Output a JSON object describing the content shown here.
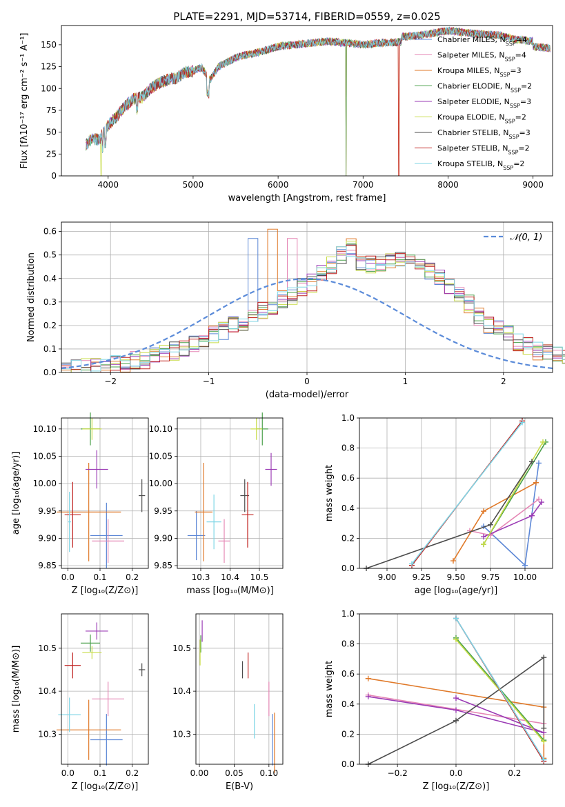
{
  "figure": {
    "title": "PLATE=2291, MJD=53714, FIBERID=0559, z=0.025"
  },
  "colors": {
    "Chabrier MILES": "#5c87d6",
    "Salpeter MILES": "#e587b5",
    "Kroupa MILES": "#e07a2a",
    "Chabrier ELODIE": "#4aa04a",
    "Salpeter ELODIE": "#9b3bb5",
    "Kroupa ELODIE": "#c8dc48",
    "Chabrier STELIB": "#4d4d4d",
    "Salpeter STELIB": "#c0211f",
    "Kroupa STELIB": "#7fd6e6",
    "normal_curve": "#5b8bd9"
  },
  "chart_data": [
    {
      "id": "spectrum",
      "type": "line",
      "title": "PLATE=2291, MJD=53714, FIBERID=0559, z=0.025",
      "xlabel": "wavelength [Angstrom, rest frame]",
      "ylabel": "Flux [fλ10⁻¹⁷ erg cm⁻² s⁻¹ A⁻¹]",
      "xlim": [
        3450,
        9230
      ],
      "ylim": [
        0,
        172
      ],
      "xticks": [
        4000,
        5000,
        6000,
        7000,
        8000,
        9000
      ],
      "yticks": [
        0,
        25,
        50,
        75,
        100,
        125,
        150
      ],
      "grid": false,
      "legend_position": "top-right",
      "continuum": {
        "x": [
          3740,
          3800,
          3900,
          4000,
          4100,
          4200,
          4300,
          4400,
          4500,
          4600,
          4700,
          4800,
          4900,
          5000,
          5100,
          5200,
          5300,
          5400,
          5500,
          5600,
          5700,
          5800,
          5900,
          6000,
          6200,
          6400,
          6600,
          6800,
          7000,
          7200,
          7400,
          7600,
          7800,
          8000,
          8200,
          8400,
          8600,
          8800,
          9000,
          9200
        ],
        "y": [
          35,
          42,
          42,
          58,
          68,
          80,
          88,
          90,
          100,
          106,
          110,
          112,
          118,
          120,
          124,
          110,
          125,
          130,
          135,
          138,
          140,
          142,
          145,
          148,
          150,
          152,
          154,
          152,
          150,
          152,
          153,
          154,
          157,
          160,
          158,
          156,
          155,
          150,
          148,
          146
        ]
      },
      "dropouts": [
        {
          "series": "Kroupa ELODIE",
          "x": 3918
        },
        {
          "series": "Kroupa MILES",
          "x": 6800
        },
        {
          "series": "Chabrier ELODIE",
          "x": 6800
        },
        {
          "series": "Kroupa MILES",
          "x": 7420
        },
        {
          "series": "Salpeter STELIB",
          "x": 7420
        }
      ],
      "series": [
        {
          "name": "Chabrier MILES",
          "nssp": "4"
        },
        {
          "name": "Salpeter MILES",
          "nssp": "4"
        },
        {
          "name": "Kroupa MILES",
          "nssp": "3"
        },
        {
          "name": "Chabrier ELODIE",
          "nssp": "2"
        },
        {
          "name": "Salpeter ELODIE",
          "nssp": "3"
        },
        {
          "name": "Kroupa ELODIE",
          "nssp": "2"
        },
        {
          "name": "Chabrier STELIB",
          "nssp": "3"
        },
        {
          "name": "Salpeter STELIB",
          "nssp": "2"
        },
        {
          "name": "Kroupa STELIB",
          "nssp": "2"
        }
      ]
    },
    {
      "id": "residuals",
      "type": "histogram",
      "xlabel": "(data-model)/error",
      "ylabel": "Normed distribution",
      "xlim": [
        -2.5,
        2.5
      ],
      "ylim": [
        0,
        0.64
      ],
      "xticks": [
        -2,
        -1,
        0,
        1,
        2
      ],
      "yticks": [
        0.0,
        0.1,
        0.2,
        0.3,
        0.4,
        0.5,
        0.6
      ],
      "grid": true,
      "legend_position": "top-right",
      "legend_label": "𝒩(0, 1)",
      "bin_width": 0.1,
      "bin_start": -2.5,
      "base_values": [
        0.01,
        0.015,
        0.02,
        0.025,
        0.03,
        0.035,
        0.04,
        0.05,
        0.055,
        0.065,
        0.08,
        0.09,
        0.1,
        0.12,
        0.14,
        0.16,
        0.18,
        0.2,
        0.21,
        0.24,
        0.26,
        0.28,
        0.31,
        0.33,
        0.36,
        0.38,
        0.42,
        0.46,
        0.5,
        0.53,
        0.47,
        0.46,
        0.47,
        0.47,
        0.48,
        0.47,
        0.47,
        0.43,
        0.41,
        0.36,
        0.33,
        0.29,
        0.24,
        0.2,
        0.19,
        0.17,
        0.13,
        0.11,
        0.09,
        0.08,
        0.07,
        0.06,
        0.05,
        0.05,
        0.04,
        0.04,
        0.03,
        0.03,
        0.03,
        0.03
      ],
      "peaks": [
        {
          "series": "Kroupa MILES",
          "x": -0.35,
          "y": 0.61
        },
        {
          "series": "Chabrier MILES",
          "x": -0.65,
          "y": 0.57
        },
        {
          "series": "Salpeter MILES",
          "x": -0.25,
          "y": 0.57
        }
      ]
    },
    {
      "id": "age-vs-Z",
      "type": "scatter",
      "xlabel": "Z [log₁₀(Z/Z⊙)]",
      "ylabel": "age  [log₁₀(age/yr)]",
      "xlim": [
        -0.02,
        0.25
      ],
      "ylim": [
        9.845,
        10.12
      ],
      "xticks": [
        0.0,
        0.1,
        0.2
      ],
      "yticks": [
        9.85,
        9.9,
        9.95,
        10.0,
        10.05,
        10.1
      ],
      "points": [
        {
          "series": "Chabrier MILES",
          "x": 0.12,
          "y": 9.905,
          "xerr": 0.05,
          "yerr": 0.06
        },
        {
          "series": "Salpeter MILES",
          "x": 0.125,
          "y": 9.895,
          "xerr": 0.05,
          "yerr": 0.04
        },
        {
          "series": "Kroupa MILES",
          "x": 0.065,
          "y": 9.948,
          "xerr": 0.1,
          "yerr": 0.09
        },
        {
          "series": "Chabrier ELODIE",
          "x": 0.07,
          "y": 10.1,
          "xerr": 0.03,
          "yerr": 0.03
        },
        {
          "series": "Salpeter ELODIE",
          "x": 0.09,
          "y": 10.026,
          "xerr": 0.035,
          "yerr": 0.035
        },
        {
          "series": "Kroupa ELODIE",
          "x": 0.075,
          "y": 10.1,
          "xerr": 0.03,
          "yerr": 0.02
        },
        {
          "series": "Chabrier STELIB",
          "x": 0.23,
          "y": 9.978,
          "xerr": 0.01,
          "yerr": 0.03
        },
        {
          "series": "Salpeter STELIB",
          "x": 0.015,
          "y": 9.943,
          "xerr": 0.025,
          "yerr": 0.06
        },
        {
          "series": "Kroupa STELIB",
          "x": 0.005,
          "y": 9.93,
          "xerr": 0.005,
          "yerr": 0.055
        }
      ]
    },
    {
      "id": "age-vs-mass",
      "type": "scatter",
      "xlabel": "mass [log₁₀(M/M⊙)]",
      "ylabel": "",
      "xlim": [
        10.22,
        10.58
      ],
      "ylim": [
        9.845,
        10.12
      ],
      "xticks": [
        10.3,
        10.4,
        10.5
      ],
      "yticks": [
        9.85,
        9.9,
        9.95,
        10.0,
        10.05,
        10.1
      ],
      "points": [
        {
          "series": "Chabrier MILES",
          "x": 10.285,
          "y": 9.905,
          "xerr": 0.03,
          "yerr": 0.045
        },
        {
          "series": "Salpeter MILES",
          "x": 10.38,
          "y": 9.895,
          "xerr": 0.02,
          "yerr": 0.04
        },
        {
          "series": "Kroupa MILES",
          "x": 10.31,
          "y": 9.948,
          "xerr": 0.03,
          "yerr": 0.09
        },
        {
          "series": "Chabrier ELODIE",
          "x": 10.51,
          "y": 10.1,
          "xerr": 0.02,
          "yerr": 0.03
        },
        {
          "series": "Salpeter ELODIE",
          "x": 10.54,
          "y": 10.026,
          "xerr": 0.02,
          "yerr": 0.03
        },
        {
          "series": "Kroupa ELODIE",
          "x": 10.49,
          "y": 10.1,
          "xerr": 0.02,
          "yerr": 0.02
        },
        {
          "series": "Chabrier STELIB",
          "x": 10.45,
          "y": 9.978,
          "xerr": 0.015,
          "yerr": 0.03
        },
        {
          "series": "Salpeter STELIB",
          "x": 10.46,
          "y": 9.943,
          "xerr": 0.02,
          "yerr": 0.06
        },
        {
          "series": "Kroupa STELIB",
          "x": 10.345,
          "y": 9.93,
          "xerr": 0.025,
          "yerr": 0.05
        }
      ]
    },
    {
      "id": "weight-vs-age",
      "type": "line",
      "xlabel": "age  [log₁₀(age/yr)]",
      "ylabel": "mass weight",
      "xlim": [
        8.8,
        10.2
      ],
      "ylim": [
        0,
        1
      ],
      "xticks": [
        9.0,
        9.25,
        9.5,
        9.75,
        10.0
      ],
      "xtick_labels": [
        "9.00",
        "9.25",
        "9.50",
        "9.75",
        "10.00"
      ],
      "yticks": [
        0.0,
        0.2,
        0.4,
        0.6,
        0.8,
        1.0
      ],
      "series": [
        {
          "name": "Chabrier MILES",
          "x": [
            9.7,
            10.0,
            10.1
          ],
          "y": [
            0.28,
            0.02,
            0.7
          ]
        },
        {
          "name": "Salpeter MILES",
          "x": [
            9.6,
            9.75,
            10.1
          ],
          "y": [
            0.25,
            0.22,
            0.46
          ]
        },
        {
          "name": "Kroupa MILES",
          "x": [
            9.48,
            9.7,
            10.08
          ],
          "y": [
            0.05,
            0.38,
            0.57
          ]
        },
        {
          "name": "Chabrier ELODIE",
          "x": [
            9.7,
            10.15
          ],
          "y": [
            0.16,
            0.84
          ]
        },
        {
          "name": "Salpeter ELODIE",
          "x": [
            9.7,
            10.05,
            10.12
          ],
          "y": [
            0.21,
            0.35,
            0.44
          ]
        },
        {
          "name": "Kroupa ELODIE",
          "x": [
            9.7,
            10.13
          ],
          "y": [
            0.16,
            0.84
          ]
        },
        {
          "name": "Chabrier STELIB",
          "x": [
            8.85,
            9.75,
            10.05
          ],
          "y": [
            0.0,
            0.29,
            0.71
          ]
        },
        {
          "name": "Salpeter STELIB",
          "x": [
            9.18,
            9.98
          ],
          "y": [
            0.02,
            0.98
          ]
        },
        {
          "name": "Kroupa STELIB",
          "x": [
            9.18,
            9.98
          ],
          "y": [
            0.03,
            0.97
          ]
        }
      ]
    },
    {
      "id": "mass-vs-Z",
      "type": "scatter",
      "xlabel": "Z [log₁₀(Z/Z⊙)]",
      "ylabel": "mass [log₁₀(M/M⊙)]",
      "xlim": [
        -0.02,
        0.25
      ],
      "ylim": [
        10.23,
        10.58
      ],
      "xticks": [
        0.0,
        0.1,
        0.2
      ],
      "yticks": [
        10.3,
        10.4,
        10.5
      ],
      "points": [
        {
          "series": "Chabrier MILES",
          "x": 0.12,
          "y": 10.287,
          "xerr": 0.05,
          "yerr": 0.06
        },
        {
          "series": "Salpeter MILES",
          "x": 0.125,
          "y": 10.382,
          "xerr": 0.05,
          "yerr": 0.04
        },
        {
          "series": "Kroupa MILES",
          "x": 0.065,
          "y": 10.31,
          "xerr": 0.1,
          "yerr": 0.07
        },
        {
          "series": "Chabrier ELODIE",
          "x": 0.07,
          "y": 10.512,
          "xerr": 0.03,
          "yerr": 0.02
        },
        {
          "series": "Salpeter ELODIE",
          "x": 0.09,
          "y": 10.54,
          "xerr": 0.035,
          "yerr": 0.02
        },
        {
          "series": "Kroupa ELODIE",
          "x": 0.075,
          "y": 10.49,
          "xerr": 0.03,
          "yerr": 0.015
        },
        {
          "series": "Chabrier STELIB",
          "x": 0.23,
          "y": 10.45,
          "xerr": 0.01,
          "yerr": 0.015
        },
        {
          "series": "Salpeter STELIB",
          "x": 0.015,
          "y": 10.46,
          "xerr": 0.025,
          "yerr": 0.03
        },
        {
          "series": "Kroupa STELIB",
          "x": 0.005,
          "y": 10.345,
          "xerr": 0.035,
          "yerr": 0.04
        }
      ]
    },
    {
      "id": "mass-vs-EBV",
      "type": "scatter",
      "xlabel": "E(B-V)",
      "ylabel": "",
      "xlim": [
        -0.005,
        0.12
      ],
      "ylim": [
        10.23,
        10.58
      ],
      "xticks": [
        0.0,
        0.05,
        0.1
      ],
      "xtick_labels": [
        "0.00",
        "0.05",
        "0.10"
      ],
      "yticks": [
        10.3,
        10.4,
        10.5
      ],
      "points": [
        {
          "series": "Chabrier MILES",
          "x": 0.105,
          "y": 10.287,
          "xerr": 0.0,
          "yerr": 0.06
        },
        {
          "series": "Salpeter MILES",
          "x": 0.1,
          "y": 10.382,
          "xerr": 0.0,
          "yerr": 0.04
        },
        {
          "series": "Kroupa MILES",
          "x": 0.108,
          "y": 10.28,
          "xerr": 0.0,
          "yerr": 0.07
        },
        {
          "series": "Chabrier ELODIE",
          "x": 0.002,
          "y": 10.51,
          "xerr": 0.0,
          "yerr": 0.02
        },
        {
          "series": "Salpeter ELODIE",
          "x": 0.004,
          "y": 10.54,
          "xerr": 0.0,
          "yerr": 0.025
        },
        {
          "series": "Kroupa ELODIE",
          "x": 0.001,
          "y": 10.49,
          "xerr": 0.0,
          "yerr": 0.03
        },
        {
          "series": "Chabrier STELIB",
          "x": 0.062,
          "y": 10.45,
          "xerr": 0.0,
          "yerr": 0.02
        },
        {
          "series": "Salpeter STELIB",
          "x": 0.07,
          "y": 10.46,
          "xerr": 0.0,
          "yerr": 0.03
        },
        {
          "series": "Kroupa STELIB",
          "x": 0.079,
          "y": 10.33,
          "xerr": 0.0,
          "yerr": 0.04
        }
      ]
    },
    {
      "id": "weight-vs-Z",
      "type": "line",
      "xlabel": "Z [log₁₀(Z/Z⊙)]",
      "ylabel": "mass weight",
      "xlim": [
        -0.33,
        0.33
      ],
      "ylim": [
        0,
        1
      ],
      "xticks": [
        -0.2,
        0.0,
        0.2
      ],
      "xtick_labels": [
        "−0.2",
        "0.0",
        "0.2"
      ],
      "yticks": [
        0.0,
        0.2,
        0.4,
        0.6,
        0.8,
        1.0
      ],
      "series": [
        {
          "name": "Chabrier MILES",
          "x": [
            0.0,
            0.3
          ],
          "y": [
            0.97,
            0.03
          ]
        },
        {
          "name": "Salpeter MILES",
          "x": [
            -0.3,
            0.3
          ],
          "y": [
            0.46,
            0.27
          ]
        },
        {
          "name": "Kroupa MILES",
          "x": [
            -0.3,
            0.3,
            0.3
          ],
          "y": [
            0.57,
            0.38,
            0.04
          ]
        },
        {
          "name": "Chabrier ELODIE",
          "x": [
            0.0,
            0.3
          ],
          "y": [
            0.84,
            0.16
          ]
        },
        {
          "name": "Salpeter ELODIE",
          "x": [
            -0.3,
            0.0,
            0.3,
            0.0
          ],
          "y": [
            0.45,
            0.36,
            0.21,
            0.44
          ]
        },
        {
          "name": "Kroupa ELODIE",
          "x": [
            0.0,
            0.3
          ],
          "y": [
            0.83,
            0.15
          ]
        },
        {
          "name": "Chabrier STELIB",
          "x": [
            -0.3,
            0.0,
            0.3,
            0.3
          ],
          "y": [
            0.0,
            0.29,
            0.71,
            0.24
          ]
        },
        {
          "name": "Salpeter STELIB",
          "x": [
            0.0,
            0.3
          ],
          "y": [
            0.97,
            0.02
          ]
        },
        {
          "name": "Kroupa STELIB",
          "x": [
            0.0,
            0.3
          ],
          "y": [
            0.97,
            0.03
          ]
        }
      ]
    }
  ]
}
